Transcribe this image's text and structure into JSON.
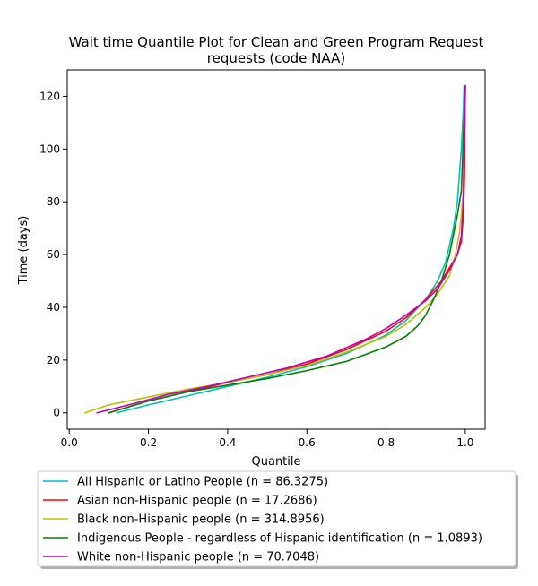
{
  "chart_data": {
    "type": "line",
    "title_line1": "Wait time Quantile Plot for Clean and Green Program Request",
    "title_line2": "requests (code NAA)",
    "xlabel": "Quantile",
    "ylabel": "Time (days)",
    "xlim": [
      -0.005,
      1.05
    ],
    "ylim": [
      -6.2,
      130
    ],
    "xticks": [
      0.0,
      0.2,
      0.4,
      0.6,
      0.8,
      1.0
    ],
    "xtick_labels": [
      "0.0",
      "0.2",
      "0.4",
      "0.6",
      "0.8",
      "1.0"
    ],
    "yticks": [
      0,
      20,
      40,
      60,
      80,
      100,
      120
    ],
    "ytick_labels": [
      "0",
      "20",
      "40",
      "60",
      "80",
      "100",
      "120"
    ],
    "grid": false,
    "legend_position": "below",
    "series": [
      {
        "name": "All Hispanic or Latino People (n = 86.3275)",
        "color": "#00bfbf",
        "points": [
          [
            0.12,
            0
          ],
          [
            0.2,
            3
          ],
          [
            0.3,
            6.5
          ],
          [
            0.4,
            10
          ],
          [
            0.5,
            13.5
          ],
          [
            0.6,
            17.5
          ],
          [
            0.7,
            22.5
          ],
          [
            0.8,
            29.5
          ],
          [
            0.85,
            35
          ],
          [
            0.9,
            43
          ],
          [
            0.93,
            50
          ],
          [
            0.95,
            57
          ],
          [
            0.97,
            70
          ],
          [
            0.98,
            80
          ],
          [
            0.985,
            90
          ],
          [
            0.99,
            100
          ],
          [
            0.995,
            115
          ],
          [
            0.997,
            124
          ]
        ]
      },
      {
        "name": "Asian non-Hispanic people (n = 17.2686)",
        "color": "#ff0000",
        "points": [
          [
            0.1,
            0
          ],
          [
            0.2,
            4.5
          ],
          [
            0.3,
            8
          ],
          [
            0.4,
            11.5
          ],
          [
            0.5,
            14.5
          ],
          [
            0.6,
            18.5
          ],
          [
            0.7,
            24
          ],
          [
            0.8,
            31
          ],
          [
            0.85,
            36
          ],
          [
            0.9,
            43
          ],
          [
            0.94,
            50
          ],
          [
            0.96,
            55
          ],
          [
            0.98,
            60
          ],
          [
            0.99,
            65
          ],
          [
            0.995,
            75
          ],
          [
            0.998,
            90
          ],
          [
            1.0,
            124
          ]
        ]
      },
      {
        "name": "Black non-Hispanic people (n = 314.8956)",
        "color": "#bfbf00",
        "points": [
          [
            0.04,
            0
          ],
          [
            0.1,
            3
          ],
          [
            0.2,
            6
          ],
          [
            0.3,
            9
          ],
          [
            0.4,
            11.5
          ],
          [
            0.5,
            14.5
          ],
          [
            0.6,
            18
          ],
          [
            0.7,
            23
          ],
          [
            0.8,
            29
          ],
          [
            0.85,
            33.5
          ],
          [
            0.9,
            40
          ],
          [
            0.93,
            45
          ],
          [
            0.96,
            52
          ],
          [
            0.975,
            60
          ],
          [
            0.985,
            68
          ],
          [
            0.99,
            75
          ],
          [
            0.995,
            85
          ],
          [
            1.0,
            124
          ]
        ]
      },
      {
        "name": "Indigenous People - regardless of Hispanic identification (n = 1.0893)",
        "color": "#008000",
        "points": [
          [
            0.1,
            0
          ],
          [
            0.2,
            4.5
          ],
          [
            0.3,
            8
          ],
          [
            0.4,
            10.5
          ],
          [
            0.5,
            13
          ],
          [
            0.6,
            16
          ],
          [
            0.7,
            19.5
          ],
          [
            0.8,
            25
          ],
          [
            0.85,
            29
          ],
          [
            0.88,
            33
          ],
          [
            0.9,
            37
          ],
          [
            0.92,
            43
          ],
          [
            0.94,
            50
          ],
          [
            0.96,
            60
          ],
          [
            0.98,
            75
          ],
          [
            0.99,
            84
          ],
          [
            1.0,
            124
          ]
        ]
      },
      {
        "name": "White non-Hispanic people (n = 70.7048)",
        "color": "#bf00bf",
        "points": [
          [
            0.07,
            0
          ],
          [
            0.15,
            3
          ],
          [
            0.25,
            7
          ],
          [
            0.35,
            10
          ],
          [
            0.45,
            13.5
          ],
          [
            0.55,
            17
          ],
          [
            0.65,
            21.5
          ],
          [
            0.75,
            28
          ],
          [
            0.8,
            32
          ],
          [
            0.85,
            37
          ],
          [
            0.9,
            42.5
          ],
          [
            0.93,
            47
          ],
          [
            0.96,
            54
          ],
          [
            0.98,
            60
          ],
          [
            0.99,
            67
          ],
          [
            0.995,
            80
          ],
          [
            1.0,
            124
          ]
        ]
      }
    ]
  }
}
